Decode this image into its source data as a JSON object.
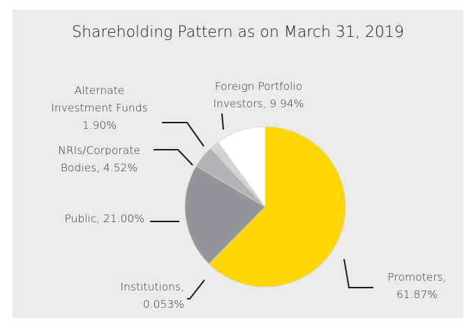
{
  "chart_data": {
    "type": "pie",
    "title": "Shareholding Pattern as on March 31, 2019",
    "categories": [
      "Promoters,",
      "Institutions,",
      "Public,",
      "NRIs/Corporate Bodies,",
      "Alternate Investment Funds",
      "Foreign Portfolio Investors,"
    ],
    "values": [
      61.87,
      0.053,
      21.0,
      4.52,
      1.9,
      9.94
    ],
    "value_labels": [
      "61.87%",
      "0.053%",
      "21.00%",
      "4.52%",
      "1.90%",
      "9.94%"
    ],
    "colors": [
      "#ffd600",
      "#6d6e71",
      "#939598",
      "#b1b3b6",
      "#d1d3d4",
      "#ffffff"
    ]
  }
}
